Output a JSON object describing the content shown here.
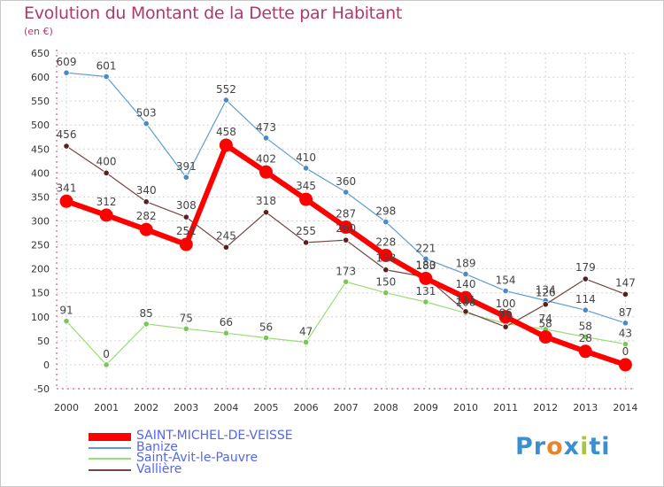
{
  "title": "Evolution du Montant de la Dette par Habitant",
  "subtitle": "(en €)",
  "logo": {
    "parts": [
      "Pr",
      "o",
      "x",
      "i",
      "ti"
    ],
    "colors": [
      "#3a8fd0",
      "#e8852a",
      "#3a8fd0",
      "#a8c83a",
      "#3a8fd0"
    ]
  },
  "chart_data": {
    "type": "line",
    "title": "Evolution du Montant de la Dette par Habitant",
    "ylabel": "(en €)",
    "xlabel": "",
    "categories": [
      "2000",
      "2001",
      "2002",
      "2003",
      "2004",
      "2005",
      "2006",
      "2007",
      "2008",
      "2009",
      "2010",
      "2011",
      "2012",
      "2013",
      "2014"
    ],
    "ylim": [
      -50,
      650
    ],
    "yticks": [
      -50,
      0,
      50,
      100,
      150,
      200,
      250,
      300,
      350,
      400,
      450,
      500,
      550,
      600,
      650
    ],
    "grid": true,
    "series": [
      {
        "name": "SAINT-MICHEL-DE-VEISSE",
        "color": "#ff0000",
        "values": [
          341,
          312,
          282,
          251,
          458,
          402,
          345,
          287,
          228,
          180,
          140,
          100,
          58,
          28,
          0
        ]
      },
      {
        "name": "Banize",
        "color": "#5e9ecf",
        "values": [
          609,
          601,
          503,
          391,
          552,
          473,
          410,
          360,
          298,
          221,
          189,
          154,
          134,
          114,
          87
        ]
      },
      {
        "name": "Saint-Avit-le-Pauvre",
        "color": "#99dd77",
        "values": [
          91,
          0,
          85,
          75,
          66,
          56,
          47,
          173,
          150,
          131,
          108,
          86,
          74,
          58,
          43
        ]
      },
      {
        "name": "Vallière",
        "color": "#774444",
        "values": [
          456,
          400,
          340,
          308,
          245,
          318,
          255,
          260,
          198,
          183,
          111,
          79,
          126,
          179,
          147
        ]
      }
    ],
    "legend_position": "bottom-left"
  }
}
